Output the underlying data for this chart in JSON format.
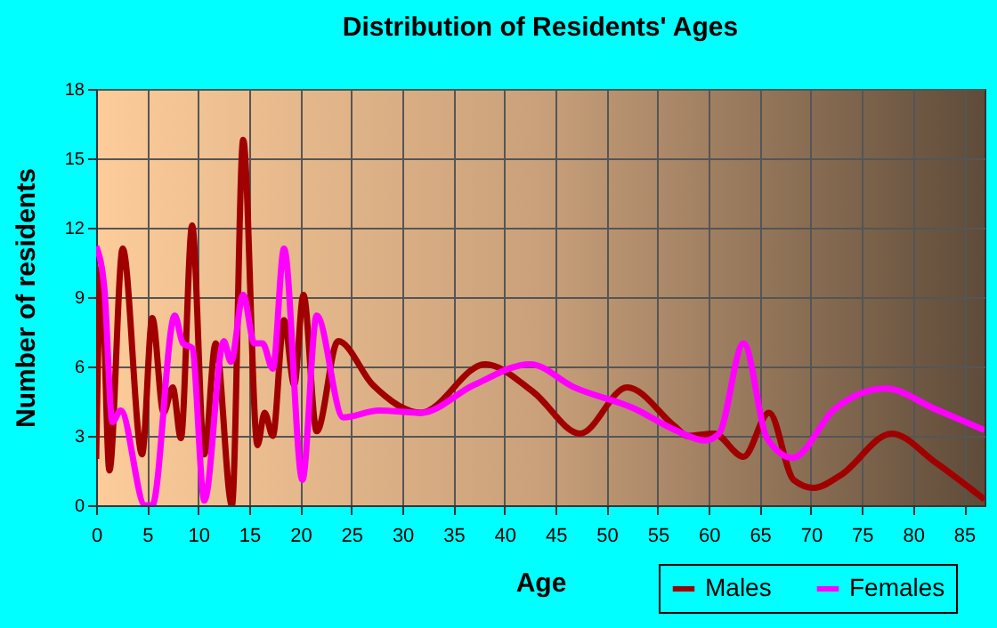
{
  "chart_data": {
    "type": "line",
    "title": "Distribution of Residents' Ages",
    "xlabel": "Age",
    "ylabel": "Number of residents",
    "xlim": [
      0,
      87
    ],
    "xticks": [
      0,
      5,
      10,
      15,
      20,
      25,
      30,
      35,
      40,
      45,
      50,
      55,
      60,
      65,
      70,
      75,
      80,
      85
    ],
    "ylim": [
      0,
      18
    ],
    "yticks": [
      0,
      3,
      6,
      9,
      12,
      15,
      18
    ],
    "grid": true,
    "legend": "bottom right",
    "series": [
      {
        "name": "Males",
        "color": "#a00000",
        "x": [
          0,
          0.5,
          1.3,
          2.6,
          4.5,
          5.5,
          6.6,
          7.5,
          8.3,
          9.4,
          10.6,
          11.7,
          13.3,
          14.4,
          15.8,
          16.5,
          17.3,
          18.4,
          19.4,
          20.3,
          21.6,
          23.7,
          27.1,
          31.8,
          38.1,
          42.8,
          47.4,
          52,
          56.7,
          57.9,
          60.5,
          63.4,
          65.9,
          68.3,
          70.3,
          72.9,
          77.9,
          82.2,
          87
        ],
        "values": [
          2.0,
          10.3,
          1.5,
          11.1,
          2.2,
          8.1,
          4.0,
          5.1,
          2.9,
          12.1,
          2.2,
          7.0,
          0,
          15.8,
          2.6,
          4.0,
          3.0,
          8.0,
          5.2,
          9.1,
          3.2,
          7.1,
          5.2,
          4.0,
          6.1,
          4.9,
          3.1,
          5.1,
          3.4,
          3.0,
          3.1,
          2.1,
          4.0,
          1.1,
          0.75,
          1.3,
          3.1,
          1.85,
          0.25
        ]
      },
      {
        "name": "Females",
        "color": "#ff00ff",
        "x": [
          0,
          0.8,
          1.6,
          2.4,
          4.8,
          5.5,
          7.7,
          8.5,
          9.4,
          10.6,
          12.5,
          13.2,
          14.4,
          15.5,
          16.3,
          17.3,
          18.4,
          20.2,
          21.6,
          24.2,
          27.7,
          31.8,
          37,
          42.5,
          46.8,
          52.6,
          56.7,
          59.6,
          61,
          63.4,
          65.7,
          68.2,
          72.3,
          77.3,
          82.2,
          87
        ],
        "values": [
          11.2,
          9.4,
          3.6,
          4.1,
          0,
          0,
          8.2,
          7.0,
          6.8,
          0.2,
          7.1,
          6.2,
          9.1,
          7.0,
          7.0,
          5.9,
          11.1,
          1.1,
          8.2,
          3.8,
          4.1,
          4.0,
          5.2,
          6.1,
          5.1,
          4.2,
          3.25,
          2.8,
          3.1,
          7.0,
          2.9,
          2.05,
          4.15,
          5.05,
          4.15,
          3.25
        ]
      }
    ]
  }
}
